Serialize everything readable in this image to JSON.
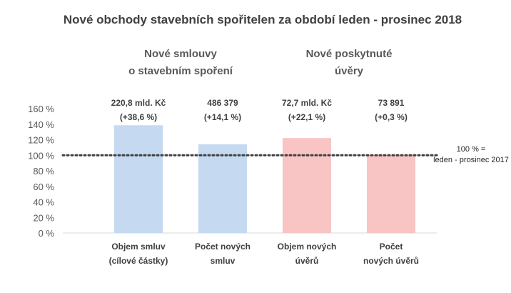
{
  "chart_data": {
    "type": "bar",
    "title": "Nové obchody stavebních spořitelen za období leden - prosinec 2018",
    "groups": [
      {
        "label_lines": [
          "Nové smlouvy",
          "o stavebním spoření"
        ],
        "categories": [
          0,
          1
        ]
      },
      {
        "label_lines": [
          "Nové poskytnuté",
          "úvěry"
        ],
        "categories": [
          2,
          3
        ]
      }
    ],
    "categories": [
      {
        "label_lines": [
          "Objem smluv",
          "(cílové částky)"
        ]
      },
      {
        "label_lines": [
          "Počet  nových",
          "smluv"
        ]
      },
      {
        "label_lines": [
          "Objem nových",
          "úvěrů"
        ]
      },
      {
        "label_lines": [
          "Počet",
          "nových úvěrů"
        ]
      }
    ],
    "values": [
      138.6,
      114.1,
      122.1,
      100.3
    ],
    "value_labels": [
      [
        "220,8 mld. Kč",
        "(+38,6 %)"
      ],
      [
        "486 379",
        "(+14,1 %)"
      ],
      [
        "72,7 mld. Kč",
        "(+22,1 %)"
      ],
      [
        "73 891",
        "(+0,3 %)"
      ]
    ],
    "colors": [
      "#c5d9f1",
      "#c5d9f1",
      "#f8c4c4",
      "#f8c4c4"
    ],
    "ylim": [
      0,
      160
    ],
    "yticks": [
      0,
      20,
      40,
      60,
      80,
      100,
      120,
      140,
      160
    ],
    "ytick_labels": [
      "0 %",
      "20 %",
      "40 %",
      "60 %",
      "80 %",
      "100 %",
      "120 %",
      "140 %",
      "160 %"
    ],
    "reference_line": {
      "value": 100,
      "style": "dotted",
      "label_lines": [
        "100 % =",
        "leden - prosinec 2017"
      ]
    },
    "grid": false,
    "legend": "none"
  }
}
